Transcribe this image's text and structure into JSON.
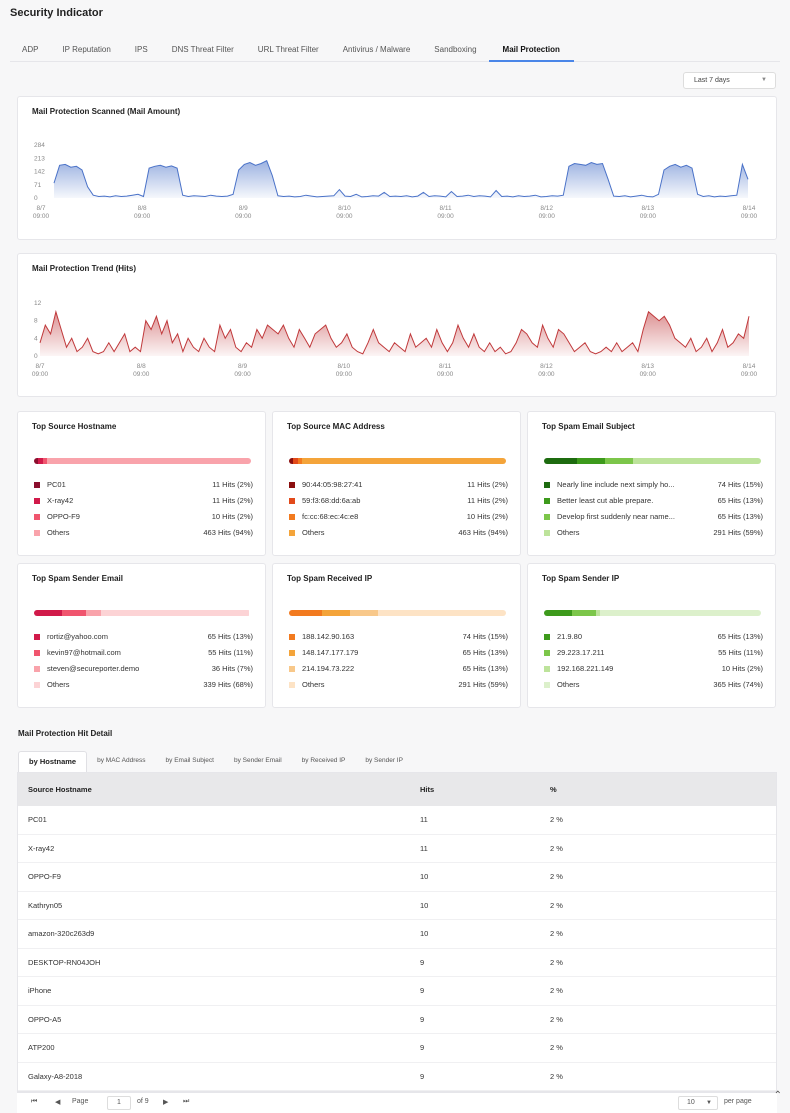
{
  "page": {
    "title": "Security Indicator"
  },
  "tabs": [
    {
      "label": "ADP"
    },
    {
      "label": "IP Reputation"
    },
    {
      "label": "IPS"
    },
    {
      "label": "DNS Threat Filter"
    },
    {
      "label": "URL Threat Filter"
    },
    {
      "label": "Antivirus / Malware"
    },
    {
      "label": "Sandboxing"
    },
    {
      "label": "Mail Protection"
    }
  ],
  "active_tab": "Mail Protection",
  "range": {
    "value": "Last 7 days"
  },
  "chart_data": [
    {
      "type": "area",
      "title": "Mail Protection Scanned (Mail Amount)",
      "yticks": [
        "284",
        "213",
        "142",
        "71",
        "0"
      ],
      "ylim": [
        0,
        284
      ],
      "x_labels": [
        {
          "date": "8/7",
          "time": "09:00"
        },
        {
          "date": "8/8",
          "time": "09:00"
        },
        {
          "date": "8/9",
          "time": "09:00"
        },
        {
          "date": "8/10",
          "time": "09:00"
        },
        {
          "date": "8/11",
          "time": "09:00"
        },
        {
          "date": "8/12",
          "time": "09:00"
        },
        {
          "date": "8/13",
          "time": "09:00"
        },
        {
          "date": "8/14",
          "time": "09:00"
        }
      ],
      "color": "#4a72c8",
      "values": [
        80,
        175,
        180,
        165,
        170,
        150,
        60,
        15,
        8,
        10,
        6,
        12,
        8,
        10,
        15,
        20,
        8,
        160,
        170,
        175,
        165,
        172,
        160,
        15,
        8,
        12,
        10,
        8,
        15,
        10,
        8,
        10,
        20,
        150,
        180,
        190,
        175,
        185,
        200,
        120,
        12,
        8,
        10,
        6,
        8,
        15,
        10,
        6,
        8,
        10,
        12,
        45,
        10,
        8,
        20,
        6,
        8,
        12,
        10,
        30,
        8,
        10,
        8,
        12,
        6,
        10,
        30,
        8,
        12,
        10,
        6,
        35,
        8,
        10,
        15,
        8,
        12,
        10,
        6,
        40,
        8,
        10,
        6,
        12,
        8,
        10,
        15,
        6,
        8,
        12,
        10,
        15,
        170,
        185,
        180,
        175,
        190,
        180,
        185,
        100,
        10,
        8,
        12,
        6,
        10,
        15,
        8,
        6,
        20,
        150,
        170,
        180,
        165,
        175,
        160,
        20,
        8,
        12,
        6,
        10,
        8,
        12,
        15,
        180,
        100
      ]
    },
    {
      "type": "area",
      "title": "Mail Protection Trend (Hits)",
      "yticks": [
        "12",
        "8",
        "4",
        "0"
      ],
      "ylim": [
        0,
        12
      ],
      "x_labels": [
        {
          "date": "8/7",
          "time": "09:00"
        },
        {
          "date": "8/8",
          "time": "09:00"
        },
        {
          "date": "8/9",
          "time": "09:00"
        },
        {
          "date": "8/10",
          "time": "09:00"
        },
        {
          "date": "8/11",
          "time": "09:00"
        },
        {
          "date": "8/12",
          "time": "09:00"
        },
        {
          "date": "8/13",
          "time": "09:00"
        },
        {
          "date": "8/14",
          "time": "09:00"
        }
      ],
      "color": "#c0393b",
      "values": [
        3,
        7,
        5,
        10,
        6,
        2,
        4,
        1,
        2,
        4,
        1,
        0.5,
        1,
        3,
        1,
        3,
        5,
        1,
        2,
        1,
        8,
        6,
        9,
        5,
        8,
        3,
        5,
        1,
        4,
        2,
        1,
        4,
        2,
        1,
        7,
        4,
        6,
        2,
        1,
        3,
        2,
        6,
        4,
        7,
        6,
        5,
        7,
        4,
        2,
        6,
        4,
        2,
        5,
        6,
        7,
        4,
        2,
        3,
        5,
        2,
        1,
        0.5,
        3,
        6,
        3,
        2,
        1,
        3,
        2,
        1,
        5,
        2,
        3,
        4,
        2,
        6,
        3,
        1,
        3,
        7,
        4,
        2,
        5,
        2,
        1,
        3,
        1,
        2,
        0.5,
        1,
        3,
        6,
        5,
        3,
        2,
        7,
        4,
        2,
        6,
        5,
        3,
        1,
        2,
        3,
        1,
        0.5,
        1,
        2,
        1,
        3,
        1,
        2,
        3,
        1,
        6,
        10,
        9,
        8,
        9,
        7,
        4,
        3,
        2,
        4,
        1,
        2,
        4,
        1,
        3,
        6,
        2,
        3,
        5,
        4,
        9
      ]
    }
  ],
  "top_cards": [
    {
      "title": "Top Source Hostname",
      "items": [
        {
          "name": "PC01",
          "hits": "11 Hits (2%)",
          "pct": 2,
          "color": "#8b0e2e"
        },
        {
          "name": "X-ray42",
          "hits": "11 Hits (2%)",
          "pct": 2,
          "color": "#d11a4a"
        },
        {
          "name": "OPPO-F9",
          "hits": "10 Hits (2%)",
          "pct": 2,
          "color": "#f0556e"
        },
        {
          "name": "Others",
          "hits": "463 Hits (94%)",
          "pct": 94,
          "color": "#f9a3ab"
        }
      ]
    },
    {
      "title": "Top Source MAC Address",
      "items": [
        {
          "name": "90:44:05:98:27:41",
          "hits": "11 Hits (2%)",
          "pct": 2,
          "color": "#8b0e0e"
        },
        {
          "name": "59:f3:68:dd:6a:ab",
          "hits": "11 Hits (2%)",
          "pct": 2,
          "color": "#e24a1a"
        },
        {
          "name": "fc:cc:68:ec:4c:e8",
          "hits": "10 Hits (2%)",
          "pct": 2,
          "color": "#f27a1f"
        },
        {
          "name": "Others",
          "hits": "463 Hits (94%)",
          "pct": 94,
          "color": "#f4a43a"
        }
      ]
    },
    {
      "title": "Top Spam Email Subject",
      "items": [
        {
          "name": "Nearly line include next simply ho...",
          "hits": "74 Hits (15%)",
          "pct": 15,
          "color": "#1d6b0f"
        },
        {
          "name": "Better least cut able prepare.",
          "hits": "65 Hits (13%)",
          "pct": 13,
          "color": "#3d9a1c"
        },
        {
          "name": "Develop first suddenly near name...",
          "hits": "65 Hits (13%)",
          "pct": 13,
          "color": "#7cc64a"
        },
        {
          "name": "Others",
          "hits": "291 Hits (59%)",
          "pct": 59,
          "color": "#bde39b"
        }
      ]
    },
    {
      "title": "Top Spam Sender Email",
      "items": [
        {
          "name": "rortiz@yahoo.com",
          "hits": "65 Hits (13%)",
          "pct": 13,
          "color": "#d11a4a"
        },
        {
          "name": "kevin97@hotmail.com",
          "hits": "55 Hits (11%)",
          "pct": 11,
          "color": "#f0556e"
        },
        {
          "name": "steven@secureporter.demo",
          "hits": "36 Hits (7%)",
          "pct": 7,
          "color": "#f9a3ab"
        },
        {
          "name": "Others",
          "hits": "339 Hits (68%)",
          "pct": 68,
          "color": "#fcd3d5"
        }
      ]
    },
    {
      "title": "Top Spam Received IP",
      "items": [
        {
          "name": "188.142.90.163",
          "hits": "74 Hits (15%)",
          "pct": 15,
          "color": "#f27a1f"
        },
        {
          "name": "148.147.177.179",
          "hits": "65 Hits (13%)",
          "pct": 13,
          "color": "#f4a43a"
        },
        {
          "name": "214.194.73.222",
          "hits": "65 Hits (13%)",
          "pct": 13,
          "color": "#f8c88a"
        },
        {
          "name": "Others",
          "hits": "291 Hits (59%)",
          "pct": 59,
          "color": "#fde3c5"
        }
      ]
    },
    {
      "title": "Top Spam Sender IP",
      "items": [
        {
          "name": "21.9.80",
          "hits": "65 Hits (13%)",
          "pct": 13,
          "color": "#3d9a1c"
        },
        {
          "name": "29.223.17.211",
          "hits": "55 Hits (11%)",
          "pct": 11,
          "color": "#7cc64a"
        },
        {
          "name": "192.168.221.149",
          "hits": "10 Hits (2%)",
          "pct": 2,
          "color": "#bde39b"
        },
        {
          "name": "Others",
          "hits": "365 Hits (74%)",
          "pct": 74,
          "color": "#dcf0cb"
        }
      ]
    }
  ],
  "detail": {
    "title": "Mail Protection Hit Detail",
    "tabs": [
      {
        "label": "by Hostname"
      },
      {
        "label": "by MAC Address"
      },
      {
        "label": "by Email Subject"
      },
      {
        "label": "by Sender Email"
      },
      {
        "label": "by Received IP"
      },
      {
        "label": "by Sender IP"
      }
    ],
    "columns": {
      "host": "Source Hostname",
      "hits": "Hits",
      "pct": "%"
    },
    "rows": [
      {
        "host": "PC01",
        "hits": "11",
        "pct": "2 %"
      },
      {
        "host": "X-ray42",
        "hits": "11",
        "pct": "2 %"
      },
      {
        "host": "OPPO-F9",
        "hits": "10",
        "pct": "2 %"
      },
      {
        "host": "Kathryn05",
        "hits": "10",
        "pct": "2 %"
      },
      {
        "host": "amazon-320c263d9",
        "hits": "10",
        "pct": "2 %"
      },
      {
        "host": "DESKTOP-RN04JOH",
        "hits": "9",
        "pct": "2 %"
      },
      {
        "host": "iPhone",
        "hits": "9",
        "pct": "2 %"
      },
      {
        "host": "OPPO-A5",
        "hits": "9",
        "pct": "2 %"
      },
      {
        "host": "ATP200",
        "hits": "9",
        "pct": "2 %"
      },
      {
        "host": "Galaxy-A8-2018",
        "hits": "9",
        "pct": "2 %"
      }
    ],
    "pager": {
      "page_label": "Page",
      "page": "1",
      "of_label": "of 9",
      "per_page_value": "10",
      "per_page_label": "per page"
    }
  }
}
